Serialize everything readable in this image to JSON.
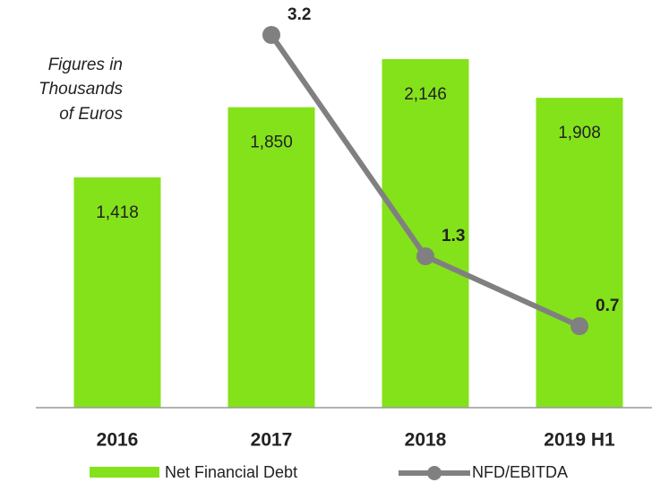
{
  "chart_data": {
    "type": "bar_line",
    "annotation": [
      "Figures in",
      "Thousands",
      "of Euros"
    ],
    "categories": [
      "2016",
      "2017",
      "2018",
      "2019 H1"
    ],
    "series": [
      {
        "name": "Net Financial Debt",
        "color": "#84e21a",
        "values": [
          1418,
          1850,
          2146,
          1908
        ],
        "value_labels": [
          "1,418",
          "1,850",
          "2,146",
          "1,908"
        ]
      },
      {
        "name": "NFD/EBITDA",
        "color": "#808080",
        "axis": "y2",
        "values": [
          null,
          3.2,
          1.3,
          0.7
        ]
      }
    ],
    "ylim": [
      0,
      2510
    ],
    "y2lim": [
      0,
      3.5
    ],
    "legend": "bottom"
  }
}
